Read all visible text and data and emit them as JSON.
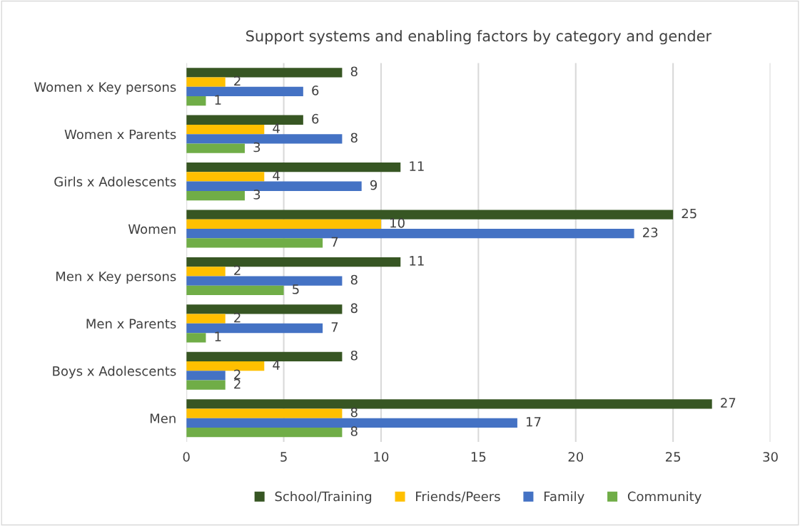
{
  "chart_data": {
    "type": "bar",
    "orientation": "horizontal",
    "title": "Support systems and enabling factors by category and gender",
    "categories": [
      "Women x Key persons",
      "Women x Parents",
      "Girls x Adolescents",
      "Women",
      "Men x Key persons",
      "Men x Parents",
      "Boys x Adolescents",
      "Men"
    ],
    "series": [
      {
        "name": "School/Training",
        "color": "#375623",
        "values": [
          8,
          6,
          11,
          25,
          11,
          8,
          8,
          27
        ]
      },
      {
        "name": "Friends/Peers",
        "color": "#ffc000",
        "values": [
          2,
          4,
          4,
          10,
          2,
          2,
          4,
          8
        ]
      },
      {
        "name": "Family",
        "color": "#4472c4",
        "values": [
          6,
          8,
          9,
          23,
          8,
          7,
          2,
          17
        ]
      },
      {
        "name": "Community",
        "color": "#70ad47",
        "values": [
          1,
          3,
          3,
          7,
          5,
          1,
          2,
          8
        ]
      }
    ],
    "xlim": [
      0,
      30
    ],
    "xticks": [
      0,
      5,
      10,
      15,
      20,
      25,
      30
    ],
    "grid": "x",
    "legend": "bottom",
    "data_labels": true
  }
}
